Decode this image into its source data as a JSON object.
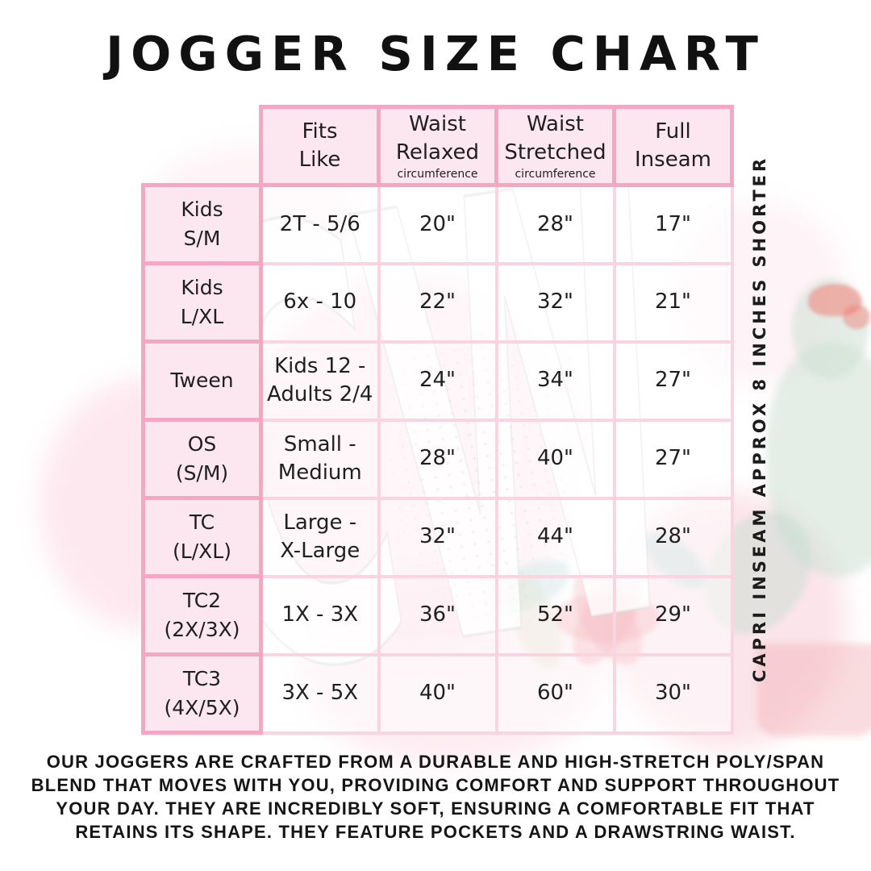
{
  "title": "JOGGER SIZE CHART",
  "watermark": "CW",
  "side_note": "CAPRI INSEAM APPROX 8 INCHES SHORTER",
  "table": {
    "headers": [
      {
        "title": "Fits\nLike",
        "subnote": ""
      },
      {
        "title": "Waist\nRelaxed",
        "subnote": "circumference"
      },
      {
        "title": "Waist\nStretched",
        "subnote": "circumference"
      },
      {
        "title": "Full\nInseam",
        "subnote": ""
      }
    ],
    "rows": [
      {
        "label": "Kids\nS/M",
        "values": [
          "2T - 5/6",
          "20\"",
          "28\"",
          "17\""
        ]
      },
      {
        "label": "Kids\nL/XL",
        "values": [
          "6x - 10",
          "22\"",
          "32\"",
          "21\""
        ]
      },
      {
        "label": "Tween",
        "values": [
          "Kids 12 -\nAdults 2/4",
          "24\"",
          "34\"",
          "27\""
        ]
      },
      {
        "label": "OS\n(S/M)",
        "values": [
          "Small -\nMedium",
          "28\"",
          "40\"",
          "27\""
        ]
      },
      {
        "label": "TC\n(L/XL)",
        "values": [
          "Large -\nX-Large",
          "32\"",
          "44\"",
          "28\""
        ]
      },
      {
        "label": "TC2\n(2X/3X)",
        "values": [
          "1X - 3X",
          "36\"",
          "52\"",
          "29\""
        ]
      },
      {
        "label": "TC3\n(4X/5X)",
        "values": [
          "3X - 5X",
          "40\"",
          "60\"",
          "30\""
        ]
      }
    ]
  },
  "footer": "OUR JOGGERS ARE CRAFTED FROM A DURABLE AND HIGH-STRETCH POLY/SPAN BLEND THAT MOVES WITH YOU, PROVIDING COMFORT AND SUPPORT THROUGHOUT YOUR DAY. THEY ARE INCREDIBLY SOFT, ENSURING A COMFORTABLE FIT THAT RETAINS ITS SHAPE. THEY FEATURE POCKETS AND A DRAWSTRING WAIST.",
  "colors": {
    "border_strong": "#f6a6c1",
    "border_light": "#fbd4e2",
    "cell_pink": "#fce6f0",
    "text": "#1f1f1f",
    "accent_coral": "#f0807 6",
    "accent_sage": "#cde0d3"
  }
}
